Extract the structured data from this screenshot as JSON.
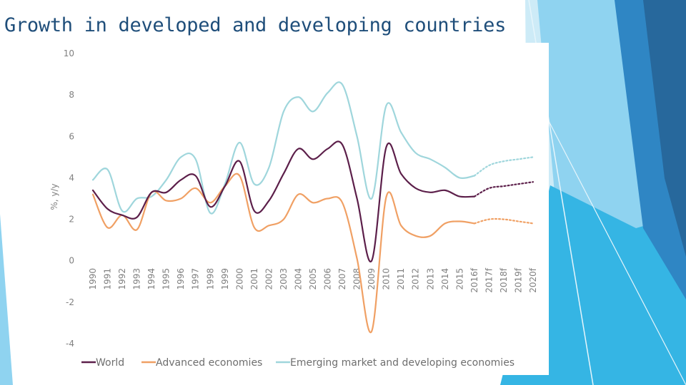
{
  "slide": {
    "title": "Growth in developed and developing countries"
  },
  "colors": {
    "dark_blue": "#2a6b9c",
    "mid_blue": "#3b8fd0",
    "cyan": "#29b0e0",
    "light_cyan": "#7fcdee",
    "pale_cyan": "#b8e2f4"
  },
  "chart_data": {
    "type": "line",
    "title": "",
    "xlabel": "",
    "ylabel": "%, y/y",
    "ylim": [
      -4,
      10
    ],
    "y_ticks": [
      10,
      8,
      6,
      4,
      2,
      0,
      -2,
      -4
    ],
    "grid": false,
    "legend_position": "bottom",
    "categories": [
      "1990",
      "1991",
      "1992",
      "1993",
      "1994",
      "1995",
      "1996",
      "1997",
      "1998",
      "1999",
      "2000",
      "2001",
      "2002",
      "2003",
      "2004",
      "2005",
      "2006",
      "2007",
      "2008",
      "2009",
      "2010",
      "2011",
      "2012",
      "2013",
      "2014",
      "2015",
      "2016f",
      "2017f",
      "2018f",
      "2019f",
      "2020f"
    ],
    "forecast_from": "2016f",
    "series": [
      {
        "name": "World",
        "color": "#5c1f4a",
        "values": [
          3.4,
          2.5,
          2.2,
          2.1,
          3.3,
          3.3,
          3.9,
          4.1,
          2.6,
          3.6,
          4.8,
          2.4,
          2.9,
          4.2,
          5.4,
          4.9,
          5.4,
          5.6,
          3.0,
          0.0,
          5.5,
          4.2,
          3.5,
          3.3,
          3.4,
          3.1,
          3.1,
          3.5,
          3.6,
          3.7,
          3.8
        ]
      },
      {
        "name": "Advanced economies",
        "color": "#f0a064",
        "values": [
          3.2,
          1.6,
          2.2,
          1.5,
          3.3,
          2.9,
          3.0,
          3.5,
          2.8,
          3.6,
          4.1,
          1.6,
          1.7,
          2.0,
          3.2,
          2.8,
          3.0,
          2.8,
          0.1,
          -3.4,
          3.1,
          1.7,
          1.2,
          1.2,
          1.8,
          1.9,
          1.8,
          2.0,
          2.0,
          1.9,
          1.8
        ]
      },
      {
        "name": "Emerging market and developing economies",
        "color": "#9fd6dc",
        "values": [
          3.9,
          4.4,
          2.4,
          3.0,
          3.1,
          3.9,
          5.0,
          4.9,
          2.3,
          3.7,
          5.7,
          3.7,
          4.5,
          7.2,
          7.9,
          7.2,
          8.1,
          8.5,
          6.0,
          3.0,
          7.5,
          6.2,
          5.2,
          4.9,
          4.5,
          4.0,
          4.1,
          4.6,
          4.8,
          4.9,
          5.0
        ]
      }
    ]
  }
}
